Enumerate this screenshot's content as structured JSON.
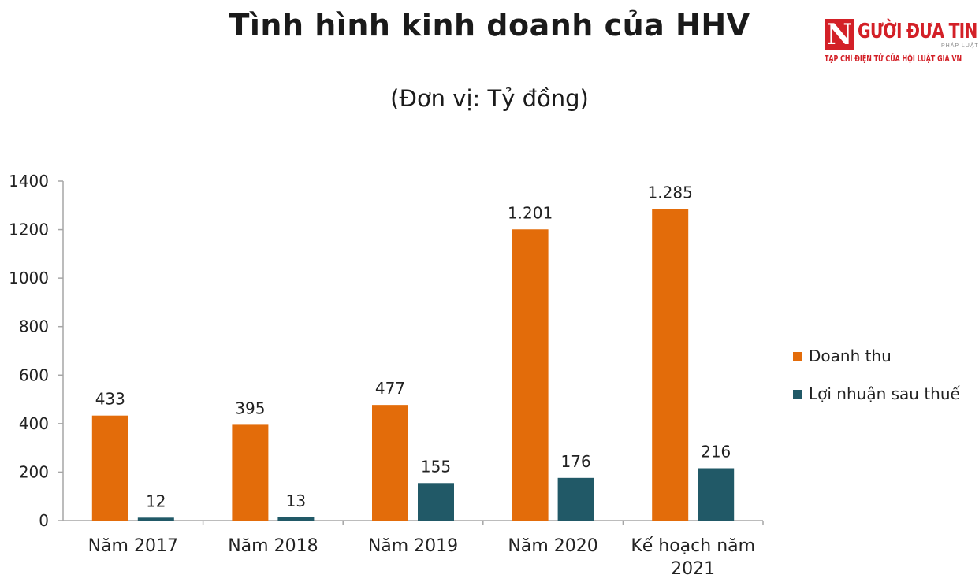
{
  "header": {
    "title": "Tình hình kinh doanh của HHV",
    "subtitle": "(Đơn vị: Tỷ đồng)"
  },
  "logo": {
    "mark": "N",
    "name": "GƯỜI ĐƯA TIN",
    "small": "PHÁP LUẬT",
    "tagline": "TẠP CHÍ ĐIỆN TỬ CỦA HỘI LUẬT GIA VN"
  },
  "colors": {
    "revenue": "#e36c0a",
    "profit": "#215967",
    "axis": "#a6a6a6"
  },
  "chart_data": {
    "type": "bar",
    "title": "Tình hình kinh doanh của HHV",
    "subtitle": "(Đơn vị: Tỷ đồng)",
    "categories": [
      [
        "Năm 2017"
      ],
      [
        "Năm 2018"
      ],
      [
        "Năm 2019"
      ],
      [
        "Năm 2020"
      ],
      [
        "Kế hoạch năm",
        "2021"
      ]
    ],
    "ylim": [
      0,
      1400
    ],
    "yticks": [
      0,
      200,
      400,
      600,
      800,
      1000,
      1200,
      1400
    ],
    "grid": false,
    "legend_position": "right",
    "series": [
      {
        "name": "Doanh thu",
        "color": "#e36c0a",
        "values": [
          433,
          395,
          477,
          1201,
          1285
        ],
        "labels": [
          "433",
          "395",
          "477",
          "1.201",
          "1.285"
        ]
      },
      {
        "name": "Lợi nhuận sau thuế",
        "color": "#215967",
        "values": [
          12,
          13,
          155,
          176,
          216
        ],
        "labels": [
          "12",
          "13",
          "155",
          "176",
          "216"
        ]
      }
    ]
  }
}
